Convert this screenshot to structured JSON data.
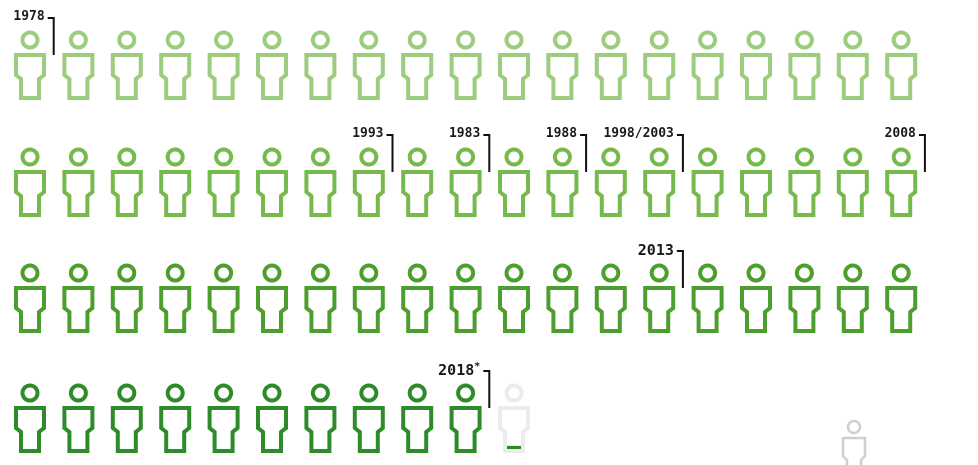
{
  "chart_data": {
    "type": "pictogram",
    "unit": "person",
    "rows": [
      {
        "count": 19,
        "color": "#9ccc7d"
      },
      {
        "count": 19,
        "color": "#76b94c"
      },
      {
        "count": 19,
        "color": "#4c9f2e"
      },
      {
        "count": 10,
        "color": "#2e8b2a"
      }
    ],
    "extra_figures": [
      {
        "row": 3,
        "slot": 10,
        "color": "#ececec",
        "fill_color": "#2e8b2a",
        "fill_fraction": 0.12
      }
    ],
    "legend_figure": {
      "color": "#cfcfcf"
    },
    "annotations": [
      {
        "label": "1978",
        "sup": "",
        "row": 0,
        "after": 1,
        "size": "sm"
      },
      {
        "label": "1993",
        "sup": "",
        "row": 1,
        "after": 8,
        "size": "sm"
      },
      {
        "label": "1983",
        "sup": "",
        "row": 1,
        "after": 10,
        "size": "sm"
      },
      {
        "label": "1988",
        "sup": "",
        "row": 1,
        "after": 12,
        "size": "sm"
      },
      {
        "label": "1998/2003",
        "sup": "",
        "row": 1,
        "after": 14,
        "size": "sm"
      },
      {
        "label": "2008",
        "sup": "",
        "row": 1,
        "after": 19,
        "size": "sm"
      },
      {
        "label": "2013",
        "sup": "",
        "row": 2,
        "after": 14,
        "size": "lg"
      },
      {
        "label": "2018",
        "sup": "*",
        "row": 3,
        "after": 10,
        "size": "lg"
      }
    ]
  }
}
